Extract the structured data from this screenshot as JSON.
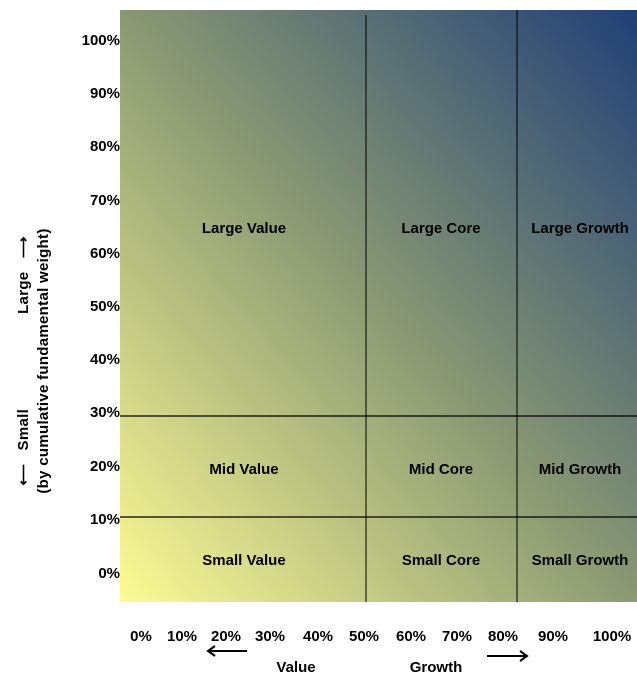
{
  "axes": {
    "y_title_line1": {
      "small": "Small",
      "large": "Large"
    },
    "y_title_line2": "(by cumulative fundamental weight)",
    "y_ticks": [
      "100%",
      "90%",
      "80%",
      "70%",
      "60%",
      "50%",
      "40%",
      "30%",
      "20%",
      "10%",
      "0%"
    ],
    "x_ticks": [
      "0%",
      "10%",
      "20%",
      "30%",
      "40%",
      "50%",
      "60%",
      "70%",
      "80%",
      "90%",
      "100%"
    ],
    "x_value_label": "Value",
    "x_growth_label": "Growth"
  },
  "cells": [
    {
      "label": "Large Value",
      "row": "large",
      "col": "value"
    },
    {
      "label": "Large Core",
      "row": "large",
      "col": "core"
    },
    {
      "label": "Large Growth",
      "row": "large",
      "col": "growth"
    },
    {
      "label": "Mid Value",
      "row": "mid",
      "col": "value"
    },
    {
      "label": "Mid Core",
      "row": "mid",
      "col": "core"
    },
    {
      "label": "Mid Growth",
      "row": "mid",
      "col": "growth"
    },
    {
      "label": "Small Value",
      "row": "small",
      "col": "value"
    },
    {
      "label": "Small Core",
      "row": "small",
      "col": "core"
    },
    {
      "label": "Small Growth",
      "row": "small",
      "col": "growth"
    }
  ],
  "colors": {
    "gradient_light": "#fdfb94",
    "gradient_mid": "#8a9973",
    "gradient_dark": "#203f77",
    "lines": "#000000"
  }
}
